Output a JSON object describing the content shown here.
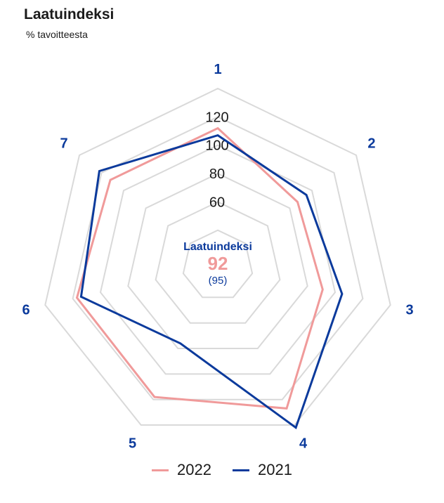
{
  "header": {
    "title": "Laatuindeksi",
    "subtitle": "% tavoitteesta"
  },
  "center": {
    "label": "Laatuindeksi",
    "value": "92",
    "previous": "(95)"
  },
  "colors": {
    "grid": "#d9d9d9",
    "series_2022": "#f09a9a",
    "series_2021": "#0b3a9c"
  },
  "chart_data": {
    "type": "radar",
    "categories": [
      "1",
      "2",
      "3",
      "4",
      "5",
      "6",
      "7"
    ],
    "rings": [
      40,
      60,
      80,
      100,
      120,
      140
    ],
    "tick_labels": [
      "60",
      "80",
      "100",
      "120"
    ],
    "range": [
      20,
      140
    ],
    "series": [
      {
        "name": "2022",
        "values": [
          112,
          87,
          91,
          127,
          118,
          117,
          112
        ]
      },
      {
        "name": "2021",
        "values": [
          107,
          95,
          105,
          142,
          76,
          114,
          122
        ]
      }
    ]
  }
}
